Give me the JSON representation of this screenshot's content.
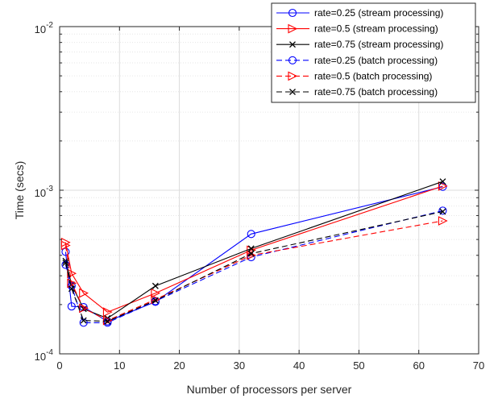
{
  "chart_data": {
    "type": "line",
    "title": "",
    "xlabel": "Number of processors per server",
    "ylabel": "Time (secs)",
    "xlim": [
      0,
      70
    ],
    "ylim": [
      0.0001,
      0.01
    ],
    "yscale": "log",
    "grid": true,
    "minor_grid": true,
    "legend_position": "top-right",
    "x_ticks": [
      0,
      10,
      20,
      30,
      40,
      50,
      60,
      70
    ],
    "x_tick_labels": [
      "0",
      "10",
      "20",
      "30",
      "40",
      "50",
      "60",
      "70"
    ],
    "y_ticks": [
      0.0001,
      0.001,
      0.01
    ],
    "y_tick_labels": [
      {
        "base": "10",
        "exp": "-4"
      },
      {
        "base": "10",
        "exp": "-3"
      },
      {
        "base": "10",
        "exp": "-2"
      }
    ],
    "series": [
      {
        "name": "rate=0.25 (stream processing)",
        "color": "#0000ff",
        "dash": "solid",
        "marker": "circle",
        "x": [
          1,
          2,
          4,
          8,
          16,
          32,
          64
        ],
        "y": [
          0.00042,
          0.000195,
          0.000193,
          0.000158,
          0.000208,
          0.00054,
          0.00105
        ]
      },
      {
        "name": "rate=0.5 (stream processing)",
        "color": "#ff0000",
        "dash": "solid",
        "marker": "triangle-right",
        "x": [
          1,
          2,
          4,
          8,
          16,
          32,
          64
        ],
        "y": [
          0.00048,
          0.00031,
          0.000235,
          0.00018,
          0.000235,
          0.00043,
          0.00106
        ]
      },
      {
        "name": "rate=0.75 (stream processing)",
        "color": "#000000",
        "dash": "solid",
        "marker": "x",
        "x": [
          1,
          2,
          4,
          8,
          16,
          32,
          64
        ],
        "y": [
          0.00037,
          0.000265,
          0.000188,
          0.000165,
          0.00026,
          0.00044,
          0.00113
        ]
      },
      {
        "name": "rate=0.25 (batch processing)",
        "color": "#0000ff",
        "dash": "dashed",
        "marker": "circle",
        "x": [
          1,
          2,
          4,
          8,
          16,
          32,
          64
        ],
        "y": [
          0.00035,
          0.00026,
          0.000155,
          0.000155,
          0.00021,
          0.00039,
          0.00075
        ]
      },
      {
        "name": "rate=0.5 (batch processing)",
        "color": "#ff0000",
        "dash": "dashed",
        "marker": "triangle-right",
        "x": [
          1,
          2,
          4,
          8,
          16,
          32,
          64
        ],
        "y": [
          0.00046,
          0.00027,
          0.00019,
          0.00016,
          0.000215,
          0.0004,
          0.00065
        ]
      },
      {
        "name": "rate=0.75 (batch processing)",
        "color": "#000000",
        "dash": "dashed",
        "marker": "x",
        "x": [
          1,
          2,
          4,
          8,
          16,
          32,
          64
        ],
        "y": [
          0.00036,
          0.00025,
          0.00016,
          0.000158,
          0.000212,
          0.00041,
          0.00074
        ]
      }
    ]
  }
}
